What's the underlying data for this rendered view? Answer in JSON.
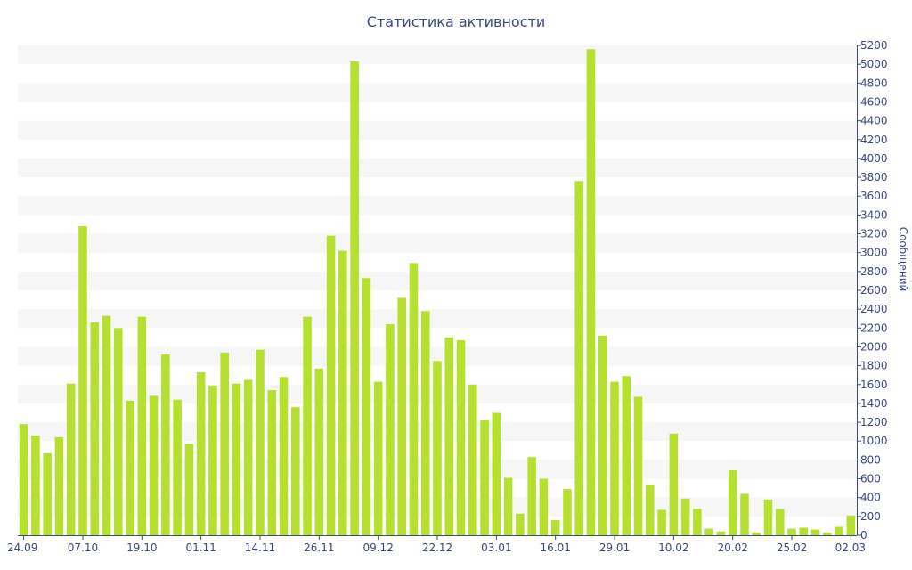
{
  "chart_data": {
    "type": "bar",
    "title": "Статистика активности",
    "ylabel": "Сообщений",
    "xlabel": "",
    "ylim": [
      0,
      5200
    ],
    "y_ticks": [
      0,
      200,
      400,
      600,
      800,
      1000,
      1200,
      1400,
      1600,
      1800,
      2000,
      2200,
      2400,
      2600,
      2800,
      3000,
      3200,
      3400,
      3600,
      3800,
      4000,
      4200,
      4400,
      4600,
      4800,
      5000,
      5200
    ],
    "y_axis_position": "right",
    "grid": "alternating horizontal bands",
    "x_tick_labels": [
      {
        "index": 0,
        "label": "24.09"
      },
      {
        "index": 5,
        "label": "07.10"
      },
      {
        "index": 10,
        "label": "19.10"
      },
      {
        "index": 15,
        "label": "01.11"
      },
      {
        "index": 20,
        "label": "14.11"
      },
      {
        "index": 25,
        "label": "26.11"
      },
      {
        "index": 30,
        "label": "09.12"
      },
      {
        "index": 35,
        "label": "22.12"
      },
      {
        "index": 40,
        "label": "03.01"
      },
      {
        "index": 45,
        "label": "16.01"
      },
      {
        "index": 50,
        "label": "29.01"
      },
      {
        "index": 55,
        "label": "10.02"
      },
      {
        "index": 60,
        "label": "20.02"
      },
      {
        "index": 65,
        "label": "25.02"
      },
      {
        "index": 70,
        "label": "02.03"
      }
    ],
    "series": [
      {
        "color": "#b5e02f",
        "values": [
          1180,
          1060,
          870,
          1040,
          1610,
          3280,
          2260,
          2330,
          2200,
          1430,
          2320,
          1480,
          1920,
          1440,
          970,
          1730,
          1590,
          1940,
          1610,
          1650,
          1970,
          1540,
          1680,
          1360,
          2320,
          1770,
          3180,
          3020,
          5030,
          2730,
          1630,
          2240,
          2520,
          2890,
          2380,
          1850,
          2100,
          2070,
          1600,
          1220,
          1300,
          610,
          230,
          830,
          600,
          160,
          490,
          3760,
          5160,
          2120,
          1630,
          1690,
          1470,
          540,
          270,
          1080,
          390,
          280,
          70,
          40,
          690,
          440,
          30,
          380,
          280,
          70,
          80,
          60,
          30,
          90,
          210
        ]
      }
    ]
  }
}
